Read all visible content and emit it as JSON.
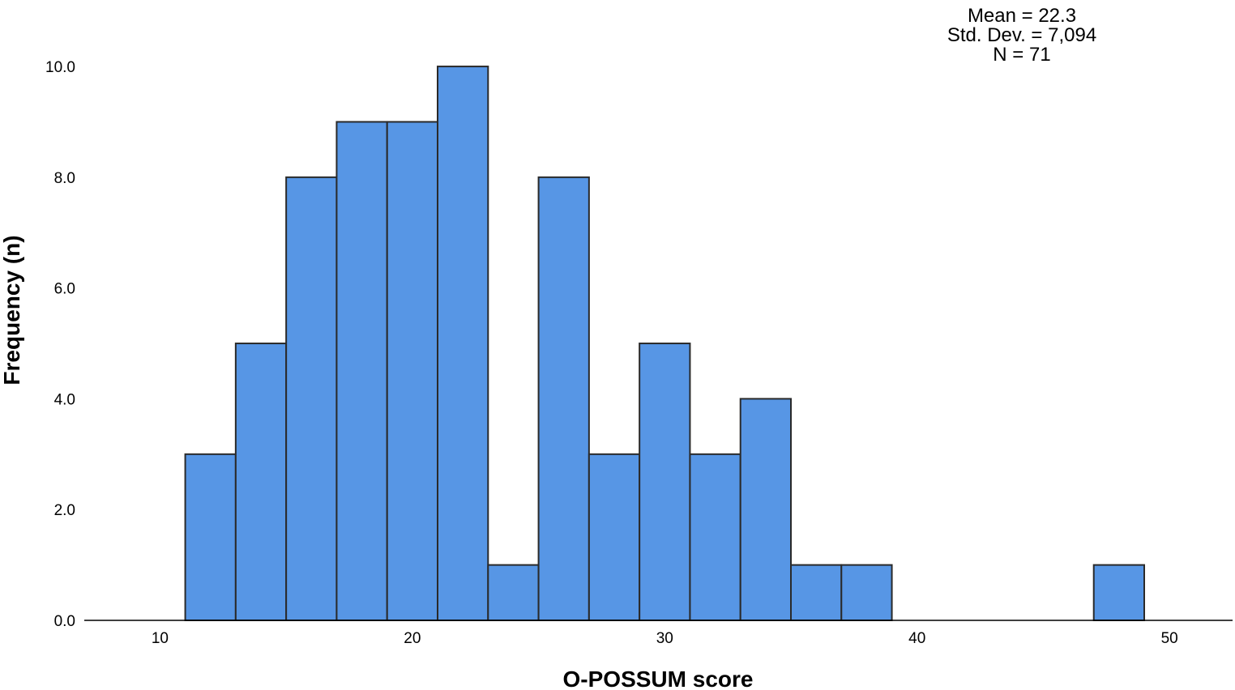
{
  "chart_data": {
    "type": "bar",
    "subtype": "histogram",
    "xlabel": "O-POSSUM score",
    "ylabel": "Frequency (n)",
    "bin_width": 2,
    "bins": [
      {
        "start": 11,
        "end": 13,
        "count": 3
      },
      {
        "start": 13,
        "end": 15,
        "count": 5
      },
      {
        "start": 15,
        "end": 17,
        "count": 8
      },
      {
        "start": 17,
        "end": 19,
        "count": 9
      },
      {
        "start": 19,
        "end": 21,
        "count": 9
      },
      {
        "start": 21,
        "end": 23,
        "count": 10
      },
      {
        "start": 23,
        "end": 25,
        "count": 1
      },
      {
        "start": 25,
        "end": 27,
        "count": 8
      },
      {
        "start": 27,
        "end": 29,
        "count": 3
      },
      {
        "start": 29,
        "end": 31,
        "count": 5
      },
      {
        "start": 31,
        "end": 33,
        "count": 3
      },
      {
        "start": 33,
        "end": 35,
        "count": 4
      },
      {
        "start": 35,
        "end": 37,
        "count": 1
      },
      {
        "start": 37,
        "end": 39,
        "count": 1
      },
      {
        "start": 47,
        "end": 49,
        "count": 1
      }
    ],
    "xticks": [
      10,
      20,
      30,
      40,
      50
    ],
    "yticks": [
      "0.0",
      "2.0",
      "4.0",
      "6.0",
      "8.0",
      "10.0"
    ],
    "xlim": [
      7,
      52.5
    ],
    "ylim": [
      0,
      11.2
    ],
    "bar_color": "#5796E5",
    "bar_edge_color": "#2A2A2A",
    "grid": false,
    "stats": [
      "Mean = 22.3",
      "Std. Dev. = 7,094",
      "N = 71"
    ]
  }
}
